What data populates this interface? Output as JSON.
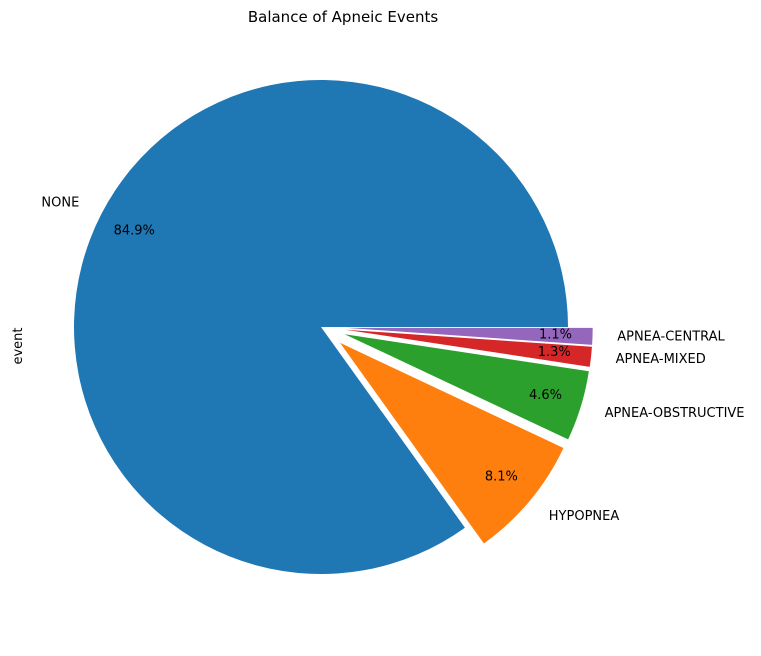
{
  "chart_data": {
    "type": "pie",
    "title": "Balance of Apneic Events",
    "ylabel": "event",
    "slices": [
      {
        "label": "NONE",
        "value": 84.9,
        "display": "84.9%",
        "color": "#1f77b4",
        "exploded": false
      },
      {
        "label": "HYPOPNEA",
        "value": 8.1,
        "display": "8.1%",
        "color": "#ff7f0e",
        "exploded": true
      },
      {
        "label": "APNEA-OBSTRUCTIVE",
        "value": 4.6,
        "display": "4.6%",
        "color": "#2ca02c",
        "exploded": true
      },
      {
        "label": "APNEA-MIXED",
        "value": 1.3,
        "display": "1.3%",
        "color": "#d62728",
        "exploded": true
      },
      {
        "label": "APNEA-CENTRAL",
        "value": 1.1,
        "display": "1.1%",
        "color": "#9467bd",
        "exploded": true
      }
    ],
    "start_angle_deg": 0,
    "direction": "counterclockwise",
    "legend": "none"
  }
}
